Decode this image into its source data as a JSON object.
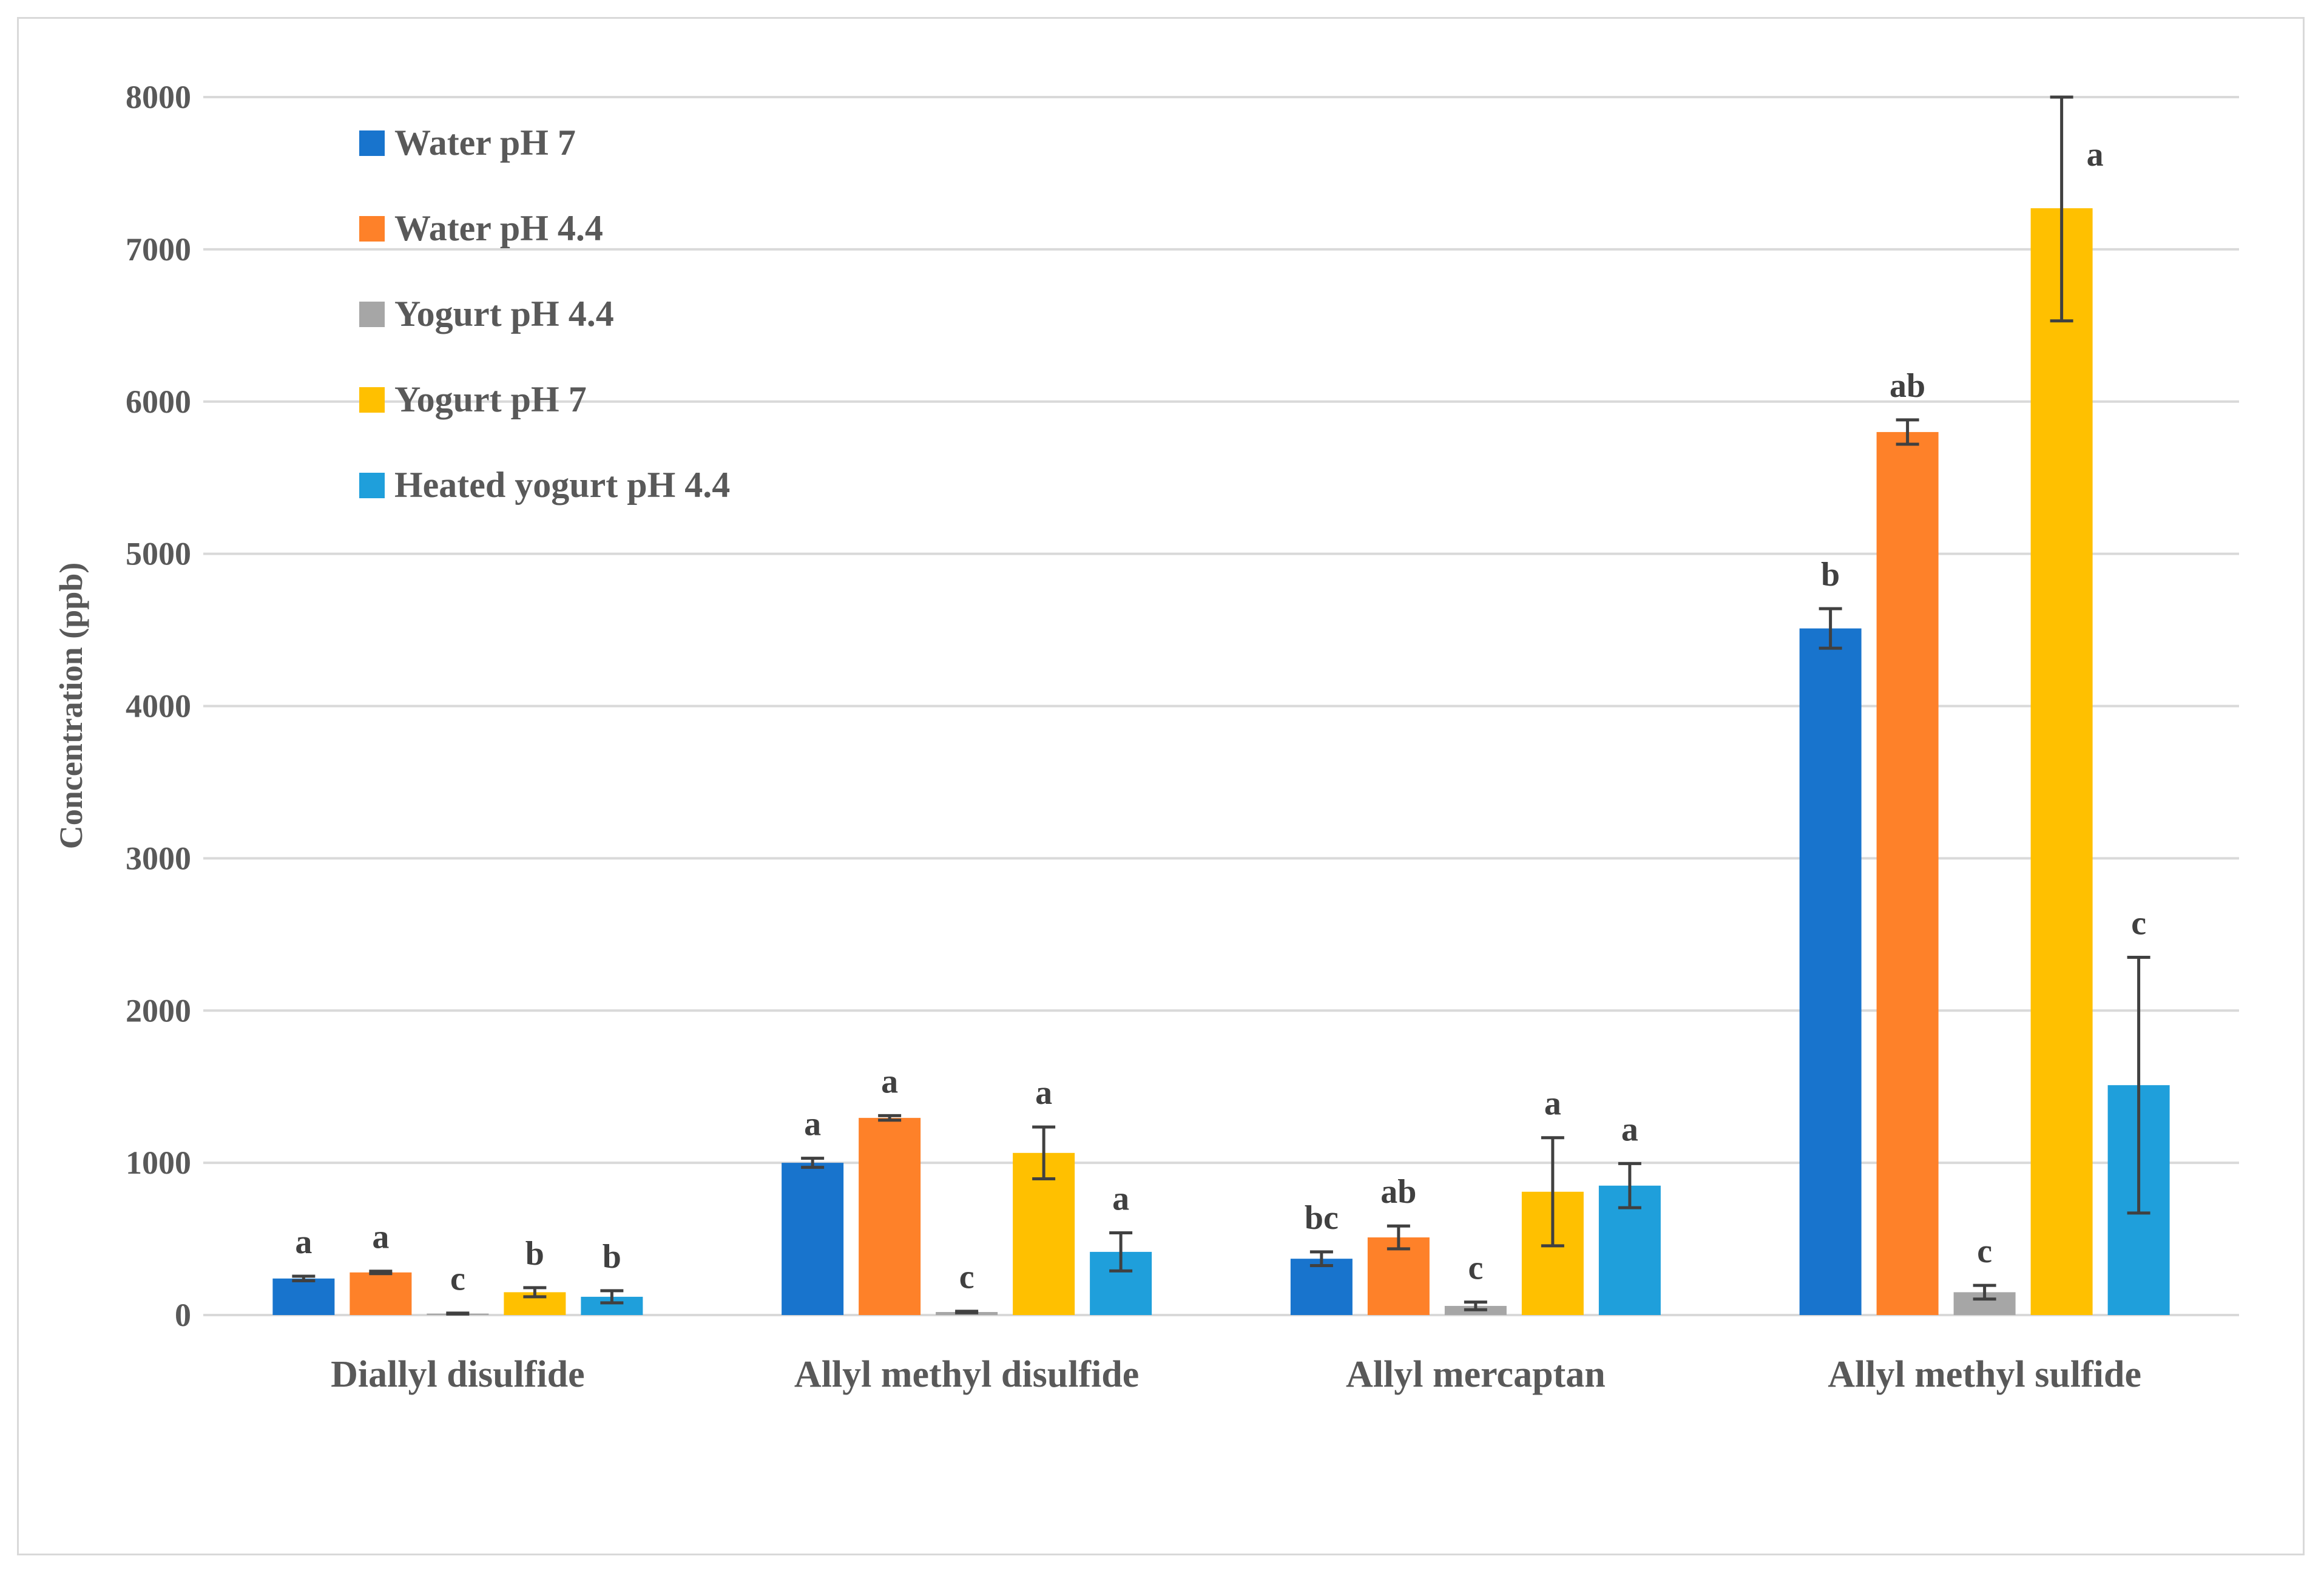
{
  "chart_data": {
    "type": "bar",
    "ylabel": "Concentration (ppb)",
    "xlabel": "",
    "ylim": [
      0,
      8000
    ],
    "yticks": [
      "0",
      "1000",
      "2000",
      "3000",
      "4000",
      "5000",
      "6000",
      "7000",
      "8000"
    ],
    "grid": true,
    "legend_position": "top-left",
    "categories": [
      "Diallyl disulfide",
      "Allyl methyl disulfide",
      "Allyl mercaptan",
      "Allyl methyl sulfide"
    ],
    "series": [
      {
        "name": "Water pH 7",
        "color": "#1874cd",
        "values": [
          240,
          1000,
          370,
          4510
        ],
        "errors": [
          15,
          30,
          45,
          130
        ],
        "labels": [
          "a",
          "a",
          "bc",
          "b"
        ]
      },
      {
        "name": "Water pH 4.4",
        "color": "#fe8129",
        "values": [
          280,
          1295,
          510,
          5800
        ],
        "errors": [
          8,
          15,
          75,
          80
        ],
        "labels": [
          "a",
          "a",
          "ab",
          "ab"
        ]
      },
      {
        "name": "Yogurt pH 4.4",
        "color": "#a6a6a6",
        "values": [
          10,
          20,
          60,
          150
        ],
        "errors": [
          3,
          5,
          25,
          45
        ],
        "labels": [
          "c",
          "c",
          "c",
          "c"
        ]
      },
      {
        "name": "Yogurt pH 7",
        "color": "#ffc000",
        "values": [
          150,
          1065,
          810,
          7270
        ],
        "errors": [
          30,
          170,
          355,
          740
        ],
        "labels": [
          "b",
          "a",
          "a",
          "a"
        ]
      },
      {
        "name": "Heated yogurt pH 4.4",
        "color": "#1f9fdb",
        "values": [
          120,
          415,
          850,
          1510
        ],
        "errors": [
          40,
          125,
          145,
          840
        ],
        "labels": [
          "b",
          "a",
          "a",
          "c"
        ]
      }
    ]
  }
}
